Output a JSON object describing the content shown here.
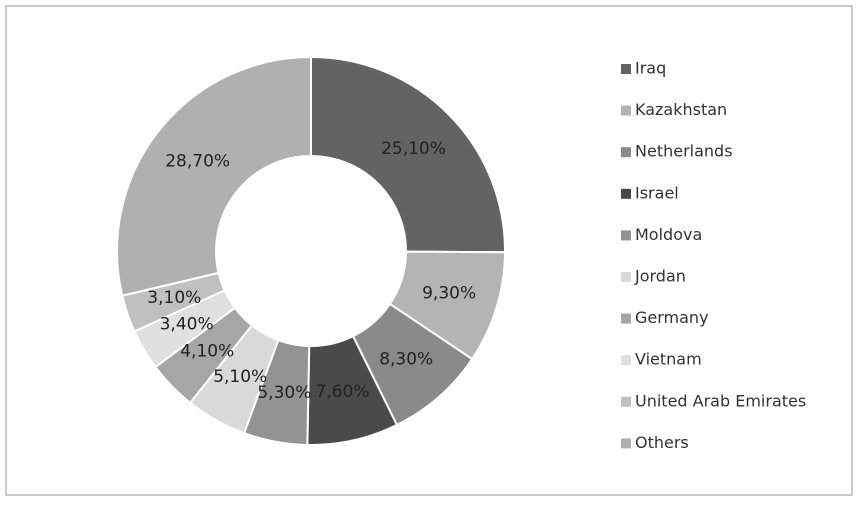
{
  "chart_data": {
    "type": "donut",
    "categories": [
      "Iraq",
      "Kazakhstan",
      "Netherlands",
      "Israel",
      "Moldova",
      "Jordan",
      "Germany",
      "Vietnam",
      "United Arab Emirates",
      "Others"
    ],
    "values": [
      25.1,
      9.3,
      8.3,
      7.6,
      5.3,
      5.1,
      4.1,
      3.4,
      3.1,
      28.7
    ],
    "value_labels": [
      "25,10%",
      "9,30%",
      "8,30%",
      "7,60%",
      "5,30%",
      "5,10%",
      "4,10%",
      "3,40%",
      "3,10%",
      "28,70%"
    ],
    "colors": [
      "#636363",
      "#b4b4b4",
      "#8a8a8a",
      "#4a4a4a",
      "#939393",
      "#d9d9d9",
      "#a6a6a6",
      "#e0e0e0",
      "#c0c0c0",
      "#b0b0b0"
    ],
    "legend": "right"
  }
}
